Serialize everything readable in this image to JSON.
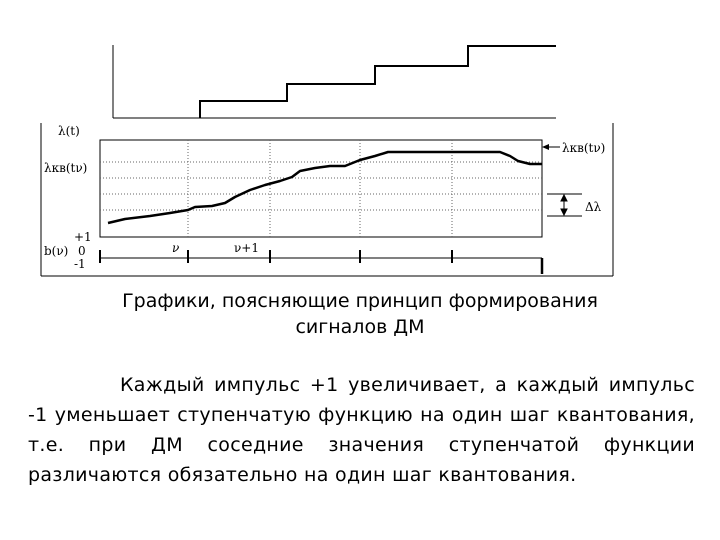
{
  "diagram": {
    "labels": {
      "lambda_t": "λ(t)",
      "lambda_sq_left": "λкв(tν)",
      "lambda_sq_right": "λкв(tν)",
      "delta_lambda": "Δλ",
      "b_nu": "b(ν)",
      "plus_one": "+1",
      "zero": "0",
      "minus_one": "-1",
      "nu": "ν",
      "nu_plus_1": "ν+1"
    }
  },
  "caption": {
    "line1": "Графики, поясняющие принцип формирования",
    "line2": "сигналов ДМ"
  },
  "paragraph": "Каждый импульс +1 увеличивает, а каждый импульс -1 уменьшает ступенчатую функцию на один шаг квантования, т.е. при ДМ соседние значения ступенчатой функции различаются обязательно на один шаг квантования."
}
